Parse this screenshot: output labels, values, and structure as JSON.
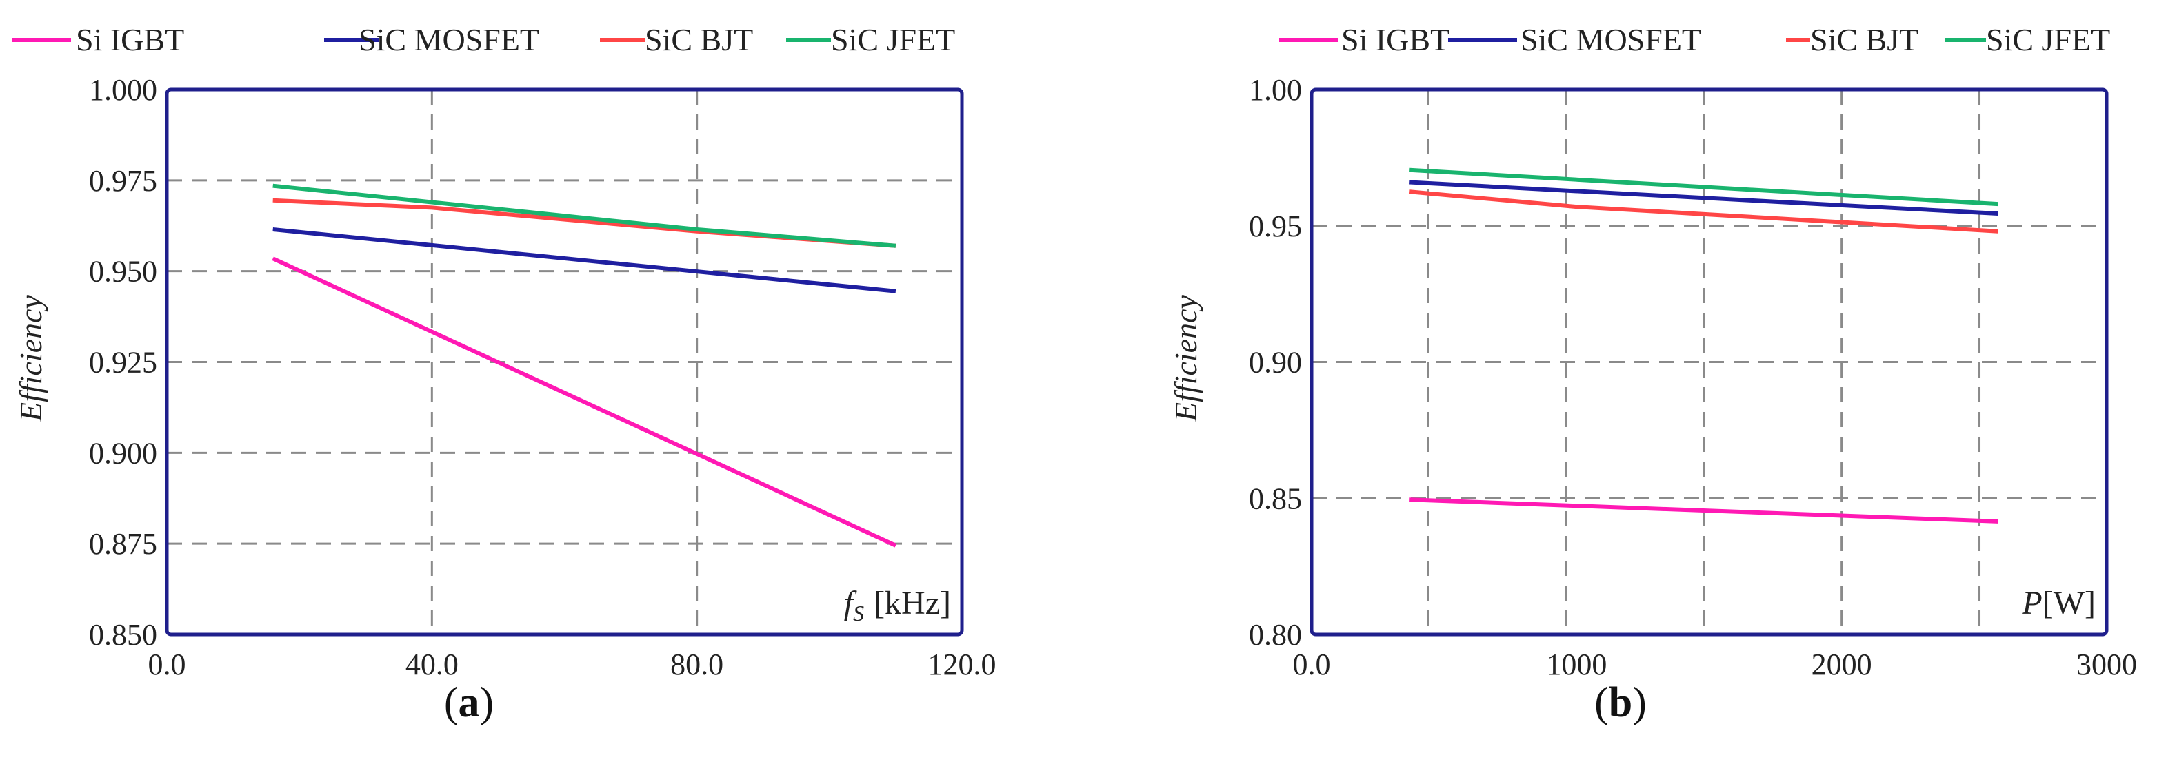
{
  "chart_data": [
    {
      "type": "line",
      "panel_label": "a",
      "legend": "top",
      "grid": true,
      "xlabel_main": "f",
      "xlabel_sub": "S",
      "xlabel_unit": "[kHz]",
      "ylabel": "Efficiency",
      "xlim": [
        0,
        120
      ],
      "ylim": [
        0.85,
        1.0
      ],
      "x_ticks": [
        "0.0",
        "40.0",
        "80.0",
        "120.0"
      ],
      "y_ticks": [
        "0.850",
        "0.875",
        "0.900",
        "0.925",
        "0.950",
        "0.975",
        "1.000"
      ],
      "series": [
        {
          "name": "Si IGBT",
          "color": "#ff19b4",
          "x": [
            16,
            110
          ],
          "values": [
            0.9535,
            0.8745
          ]
        },
        {
          "name": "SiC MOSFET",
          "color": "#1f1fa0",
          "x": [
            16,
            110
          ],
          "values": [
            0.9615,
            0.9445
          ]
        },
        {
          "name": "SiC BJT",
          "color": "#ff4646",
          "x": [
            16,
            40,
            80,
            110
          ],
          "values": [
            0.9695,
            0.9675,
            0.961,
            0.957
          ]
        },
        {
          "name": "SiC JFET",
          "color": "#19b46e",
          "x": [
            16,
            40,
            80,
            110
          ],
          "values": [
            0.9735,
            0.969,
            0.9615,
            0.957
          ]
        }
      ]
    },
    {
      "type": "line",
      "panel_label": "b",
      "legend": "top",
      "grid": true,
      "xlabel_main": "P",
      "xlabel_sub": "",
      "xlabel_unit": "[W]",
      "ylabel": "Efficiency",
      "xlim": [
        0,
        3000
      ],
      "ylim": [
        0.8,
        1.0
      ],
      "x_ticks": [
        "0.0",
        "1000",
        "2000",
        "3000"
      ],
      "y_ticks": [
        "0.80",
        "0.85",
        "0.90",
        "0.95",
        "1.00"
      ],
      "series": [
        {
          "name": "Si IGBT",
          "color": "#ff19b4",
          "x": [
            370,
            2590
          ],
          "values": [
            0.8495,
            0.8415
          ]
        },
        {
          "name": "SiC MOSFET",
          "color": "#1f1fa0",
          "x": [
            370,
            2590
          ],
          "values": [
            0.966,
            0.9545
          ]
        },
        {
          "name": "SiC BJT",
          "color": "#ff4646",
          "x": [
            370,
            1000,
            2590
          ],
          "values": [
            0.9625,
            0.957,
            0.948
          ]
        },
        {
          "name": "SiC JFET",
          "color": "#19b46e",
          "x": [
            370,
            2590
          ],
          "values": [
            0.9705,
            0.958
          ]
        }
      ]
    }
  ]
}
